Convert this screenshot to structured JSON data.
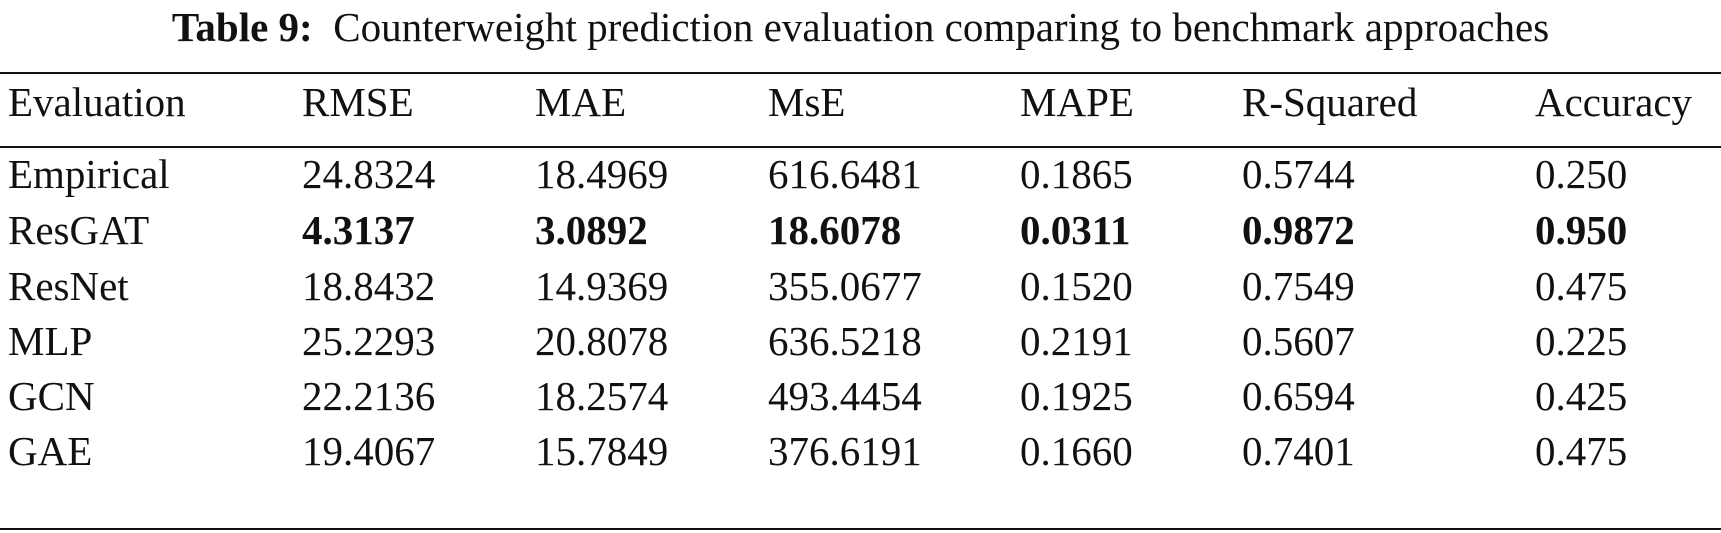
{
  "caption": {
    "label": "Table 9:",
    "text": "Counterweight prediction evaluation comparing to benchmark approaches"
  },
  "table": {
    "headers": [
      "Evaluation",
      "RMSE",
      "MAE",
      "MsE",
      "MAPE",
      "R-Squared",
      "Accuracy"
    ],
    "rows": [
      {
        "name": "Empirical",
        "values": [
          "24.8324",
          "18.4969",
          "616.6481",
          "0.1865",
          "0.5744",
          "0.250"
        ],
        "bold": false
      },
      {
        "name": "ResGAT",
        "values": [
          "4.3137",
          "3.0892",
          "18.6078",
          "0.0311",
          "0.9872",
          "0.950"
        ],
        "bold": true
      },
      {
        "name": "ResNet",
        "values": [
          "18.8432",
          "14.9369",
          "355.0677",
          "0.1520",
          "0.7549",
          "0.475"
        ],
        "bold": false
      },
      {
        "name": "MLP",
        "values": [
          "25.2293",
          "20.8078",
          "636.5218",
          "0.2191",
          "0.5607",
          "0.225"
        ],
        "bold": false
      },
      {
        "name": "GCN",
        "values": [
          "22.2136",
          "18.2574",
          "493.4454",
          "0.1925",
          "0.6594",
          "0.425"
        ],
        "bold": false
      },
      {
        "name": "GAE",
        "values": [
          "19.4067",
          "15.7849",
          "376.6191",
          "0.1660",
          "0.7401",
          "0.475"
        ],
        "bold": false
      }
    ]
  }
}
